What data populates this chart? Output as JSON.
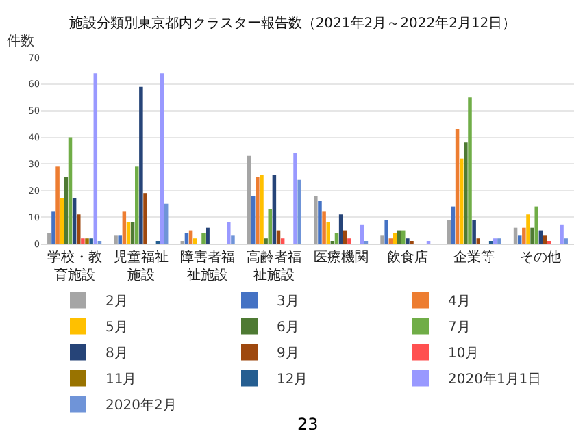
{
  "chart_data": {
    "type": "bar",
    "title": "施設分類別東京都内クラスター報告数（2021年2月～2022年2月12日）",
    "ylabel": "件数",
    "categories": [
      "学校・教育施設",
      "児童福祉施設",
      "障害者福祉施設",
      "高齢者福祉施設",
      "医療機関",
      "飲食店",
      "企業等",
      "その他"
    ],
    "series": [
      {
        "name": "2月",
        "color": "#a5a5a5",
        "values": [
          4,
          3,
          1,
          33,
          18,
          3,
          9,
          6
        ]
      },
      {
        "name": "3月",
        "color": "#4472c4",
        "values": [
          12,
          3,
          4,
          18,
          16,
          9,
          14,
          3
        ]
      },
      {
        "name": "4月",
        "color": "#ed7d31",
        "values": [
          29,
          12,
          5,
          25,
          12,
          2,
          43,
          6
        ]
      },
      {
        "name": "5月",
        "color": "#ffc000",
        "values": [
          17,
          8,
          2,
          26,
          8,
          4,
          32,
          11
        ]
      },
      {
        "name": "6月",
        "color": "#4e7a33",
        "values": [
          25,
          8,
          0,
          2,
          1,
          5,
          38,
          6
        ]
      },
      {
        "name": "7月",
        "color": "#70ad47",
        "values": [
          40,
          29,
          4,
          13,
          4,
          5,
          55,
          14
        ]
      },
      {
        "name": "8月",
        "color": "#264478",
        "values": [
          17,
          59,
          6,
          26,
          11,
          2,
          9,
          5
        ]
      },
      {
        "name": "9月",
        "color": "#9e480e",
        "values": [
          11,
          19,
          0,
          5,
          5,
          1,
          2,
          3
        ]
      },
      {
        "name": "10月",
        "color": "#ff5050",
        "values": [
          2,
          0,
          0,
          2,
          2,
          0,
          0,
          1
        ]
      },
      {
        "name": "11月",
        "color": "#997300",
        "values": [
          2,
          0,
          0,
          0,
          0,
          0,
          0,
          0
        ]
      },
      {
        "name": "12月",
        "color": "#255e91",
        "values": [
          2,
          1,
          0,
          0,
          0,
          0,
          1,
          0
        ]
      },
      {
        "name": "2020年1月1日",
        "color": "#9999ff",
        "values": [
          64,
          64,
          8,
          34,
          7,
          1,
          2,
          7
        ]
      },
      {
        "name": "2020年2月",
        "color": "#6f94d8",
        "values": [
          1,
          15,
          3,
          24,
          1,
          0,
          2,
          2
        ]
      }
    ],
    "ylim": [
      0,
      70
    ],
    "yticks": [
      0,
      10,
      20,
      30,
      40,
      50,
      60,
      70
    ],
    "grid": "y",
    "legend": "bottom",
    "annotations": [
      "23"
    ]
  }
}
